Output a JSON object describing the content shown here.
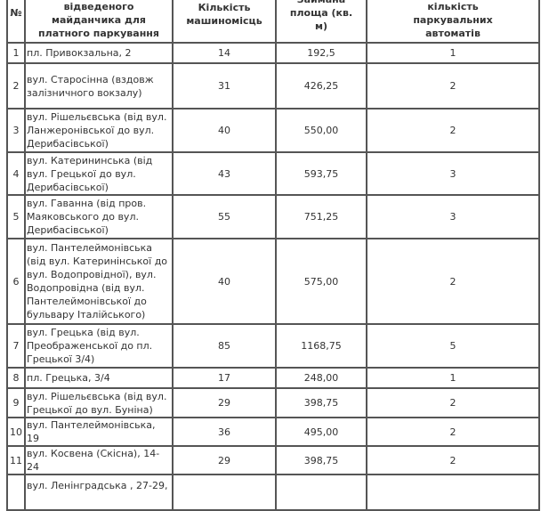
{
  "headers": {
    "no": "№",
    "address": "відведеного майданчика для платного паркування",
    "spaces": "Кількість машиномісць",
    "area": "Займана площа (кв. м)",
    "machines": "кількість паркувальних автоматів"
  },
  "rows": [
    {
      "no": "1",
      "address": "пл. Привокзальна, 2",
      "spaces": "14",
      "area": "192,5",
      "machines": "1"
    },
    {
      "no": "2",
      "address": "вул. Старосінна (вздовж залізничного вокзалу)",
      "spaces": "31",
      "area": "426,25",
      "machines": "2"
    },
    {
      "no": "3",
      "address": "вул. Рішельєвська (від вул. Ланжеронівської до вул. Дерибасівської)",
      "spaces": "40",
      "area": "550,00",
      "machines": "2"
    },
    {
      "no": "4",
      "address": "вул. Катерининська (від вул. Грецької до вул. Дерибасівської)",
      "spaces": "43",
      "area": "593,75",
      "machines": "3"
    },
    {
      "no": "5",
      "address": "вул. Гаванна (від пров. Маяковського до вул. Дерибасівської)",
      "spaces": "55",
      "area": "751,25",
      "machines": "3"
    },
    {
      "no": "6",
      "address": "вул. Пантелеймонівська (від вул. Катеринінської до вул. Водопровідної), вул. Водопровідна (від вул. Пантелеймонівської до бульвару Італійського)",
      "spaces": "40",
      "area": "575,00",
      "machines": "2"
    },
    {
      "no": "7",
      "address": "вул. Грецька (від вул. Преображенської до пл. Грецької 3/4)",
      "spaces": "85",
      "area": "1168,75",
      "machines": "5"
    },
    {
      "no": "8",
      "address": "пл. Грецька, 3/4",
      "spaces": "17",
      "area": "248,00",
      "machines": "1"
    },
    {
      "no": "9",
      "address": "вул. Рішельєвська (від вул. Грецької до вул. Буніна)",
      "spaces": "29",
      "area": "398,75",
      "machines": "2"
    },
    {
      "no": "10",
      "address": "вул. Пантелеймонівська, 19",
      "spaces": "36",
      "area": "495,00",
      "machines": "2"
    },
    {
      "no": "11",
      "address": "вул. Косвена (Скісна), 14-24",
      "spaces": "29",
      "area": "398,75",
      "machines": "2"
    },
    {
      "no": "",
      "address": "вул. Ленінградська , 27-29,",
      "spaces": "",
      "area": "",
      "machines": ""
    }
  ]
}
